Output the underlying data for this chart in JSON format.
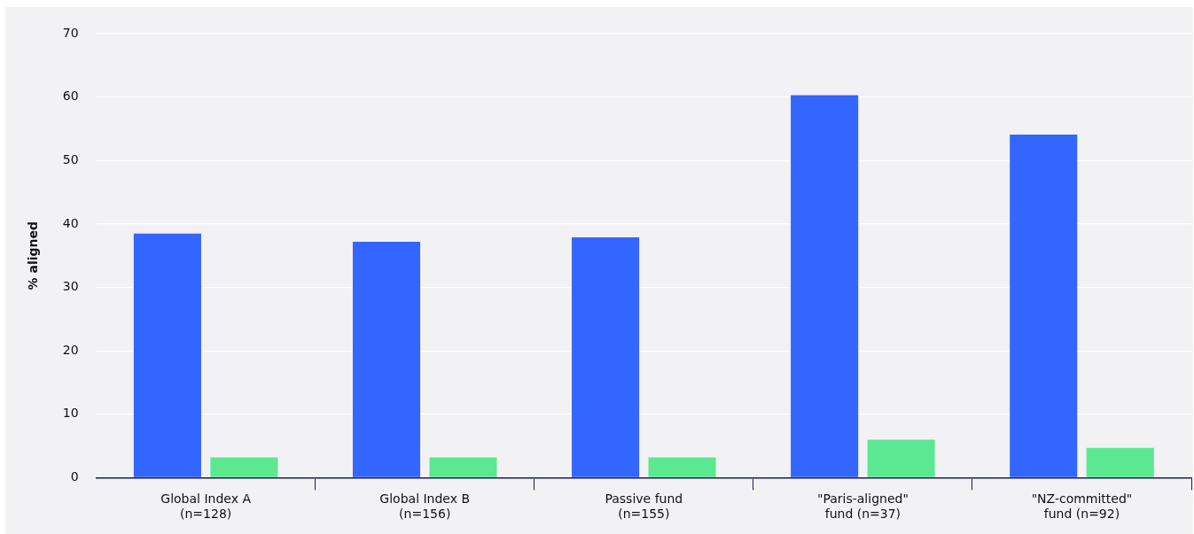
{
  "chart_data": {
    "type": "bar",
    "ylabel": "% aligned",
    "categories": [
      "Global Index A\n(n=128)",
      "Global Index B\n(n=156)",
      "Passive fund\n(n=155)",
      "\"Paris-aligned\"\nfund (n=37)",
      "\"NZ-committed\"\nfund (n=92)"
    ],
    "series": [
      {
        "color": "#3366ff",
        "values": [
          38.5,
          37.2,
          37.9,
          60.3,
          54.1
        ]
      },
      {
        "color": "#5ce890",
        "values": [
          3.2,
          3.2,
          3.2,
          6.0,
          4.7
        ]
      }
    ],
    "ylim": [
      0,
      70
    ],
    "yticks": [
      0,
      10,
      20,
      30,
      40,
      50,
      60,
      70
    ],
    "grid": "y",
    "legend": false
  }
}
